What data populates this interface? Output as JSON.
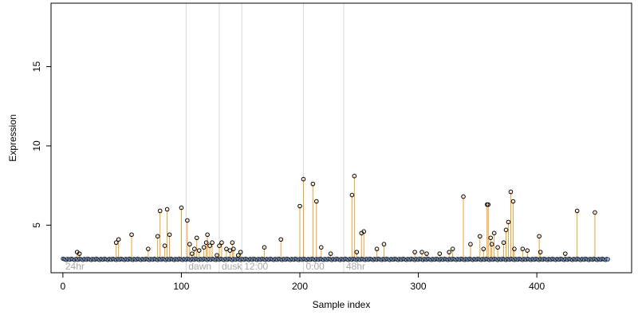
{
  "chart_data": {
    "type": "scatter",
    "xlabel": "Sample index",
    "ylabel": "Expression",
    "xlim": [
      -10,
      480
    ],
    "ylim": [
      2.0,
      19.0
    ],
    "x_ticks": [
      0,
      100,
      200,
      300,
      400
    ],
    "y_ticks": [
      5,
      10,
      15
    ],
    "baseline": 2.85,
    "colors": {
      "points": "#000000",
      "stems": "#f0a030",
      "baseline": "#87aee8",
      "region_lines": "#d8d8d8",
      "region_labels": "#a8a8a8"
    },
    "regions": [
      {
        "label": "24hr",
        "x": 0
      },
      {
        "label": "dawn",
        "x": 104
      },
      {
        "label": "dusk",
        "x": 132
      },
      {
        "label": "12:00",
        "x": 151
      },
      {
        "label": "0:00",
        "x": 203
      },
      {
        "label": "48hr",
        "x": 237
      }
    ],
    "points": [
      [
        12,
        3.3
      ],
      [
        14,
        3.2
      ],
      [
        45,
        3.9
      ],
      [
        47,
        4.1
      ],
      [
        58,
        4.4
      ],
      [
        72,
        3.5
      ],
      [
        80,
        4.3
      ],
      [
        82,
        5.9
      ],
      [
        86,
        3.7
      ],
      [
        88,
        6.0
      ],
      [
        90,
        4.4
      ],
      [
        100,
        6.1
      ],
      [
        105,
        5.3
      ],
      [
        107,
        3.8
      ],
      [
        109,
        3.2
      ],
      [
        111,
        3.5
      ],
      [
        113,
        4.2
      ],
      [
        115,
        3.4
      ],
      [
        119,
        3.6
      ],
      [
        121,
        3.9
      ],
      [
        122,
        4.4
      ],
      [
        124,
        3.7
      ],
      [
        126,
        3.9
      ],
      [
        130,
        3.1
      ],
      [
        132,
        3.7
      ],
      [
        134,
        3.9
      ],
      [
        138,
        3.5
      ],
      [
        141,
        3.4
      ],
      [
        143,
        3.9
      ],
      [
        144,
        3.5
      ],
      [
        148,
        3.1
      ],
      [
        150,
        3.3
      ],
      [
        170,
        3.6
      ],
      [
        184,
        4.1
      ],
      [
        200,
        6.2
      ],
      [
        203,
        7.9
      ],
      [
        211,
        7.6
      ],
      [
        214,
        6.5
      ],
      [
        218,
        3.6
      ],
      [
        226,
        3.2
      ],
      [
        244,
        6.9
      ],
      [
        246,
        8.1
      ],
      [
        248,
        3.3
      ],
      [
        252,
        4.5
      ],
      [
        254,
        4.6
      ],
      [
        265,
        3.5
      ],
      [
        271,
        3.8
      ],
      [
        297,
        3.3
      ],
      [
        303,
        3.3
      ],
      [
        307,
        3.2
      ],
      [
        318,
        3.2
      ],
      [
        326,
        3.3
      ],
      [
        329,
        3.5
      ],
      [
        338,
        6.8
      ],
      [
        344,
        3.8
      ],
      [
        352,
        4.3
      ],
      [
        355,
        3.5
      ],
      [
        358,
        6.3
      ],
      [
        359,
        6.3
      ],
      [
        361,
        4.2
      ],
      [
        362,
        3.8
      ],
      [
        364,
        4.5
      ],
      [
        367,
        3.6
      ],
      [
        372,
        3.9
      ],
      [
        374,
        4.7
      ],
      [
        376,
        5.2
      ],
      [
        378,
        7.1
      ],
      [
        380,
        6.5
      ],
      [
        381,
        3.5
      ],
      [
        388,
        3.5
      ],
      [
        392,
        3.4
      ],
      [
        402,
        4.3
      ],
      [
        403,
        3.3
      ],
      [
        424,
        3.2
      ],
      [
        434,
        5.9
      ],
      [
        449,
        5.8
      ]
    ]
  }
}
